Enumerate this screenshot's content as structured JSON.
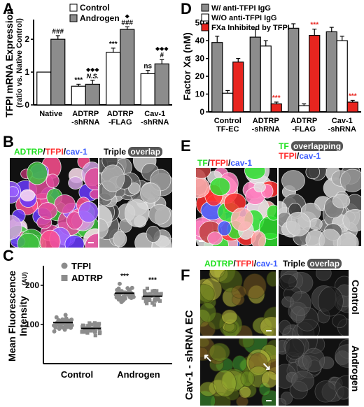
{
  "panels": {
    "A": "A",
    "B": "B",
    "C": "C",
    "D": "D",
    "E": "E",
    "F": "F"
  },
  "colors": {
    "control_fill": "#ffffff",
    "androgen_fill": "#8c8c8c",
    "w_igg_fill": "#8c8c8c",
    "wo_igg_fill": "#ffffff",
    "inhibited_fill": "#e8251f",
    "sig_red": "#e8251f",
    "green": "#22e022",
    "red": "#ff2a2a",
    "blue": "#3a5bff"
  },
  "chart_data": [
    {
      "type": "bar",
      "panel": "A",
      "ylabel": "TFPI mRNA Expression",
      "ylabel2": "(ratio vs. Native Control)",
      "categories": [
        "Native",
        "ADTRP\n-shRNA",
        "ADTRP\n-FLAG",
        "Cav-1\n-shRNA"
      ],
      "ylim": [
        0,
        2.6
      ],
      "yticks": [
        "0",
        "1",
        "2"
      ],
      "legend": [
        "Control",
        "Androgen"
      ],
      "series": [
        {
          "name": "Control",
          "values": [
            1.0,
            0.57,
            1.6,
            0.95
          ],
          "errors": [
            0.0,
            0.06,
            0.13,
            0.1
          ]
        },
        {
          "name": "Androgen",
          "values": [
            2.0,
            0.63,
            2.3,
            1.25
          ],
          "errors": [
            0.11,
            0.12,
            0.08,
            0.13
          ]
        }
      ],
      "annotations": [
        {
          "cat": 0,
          "bar": 1,
          "text": "###"
        },
        {
          "cat": 1,
          "bar": 0,
          "text": "***"
        },
        {
          "cat": 1,
          "bar": 1,
          "text": "N.S.",
          "sub": "◆◆◆"
        },
        {
          "cat": 2,
          "bar": 0,
          "text": "***"
        },
        {
          "cat": 2,
          "bar": 1,
          "text": "###",
          "sub": "◆"
        },
        {
          "cat": 3,
          "bar": 0,
          "text": "ns"
        },
        {
          "cat": 3,
          "bar": 1,
          "text": "#",
          "sub": "◆◆◆"
        }
      ]
    },
    {
      "type": "bar",
      "panel": "D",
      "ylabel": "Factor Xa (nM)",
      "categories": [
        "Control\nTF-EC",
        "ADTRP\n-shRNA",
        "ADTRP\n-FLAG",
        "Cav-1\n-shRNA"
      ],
      "ylim": [
        0,
        55
      ],
      "yticks": [
        "0",
        "10",
        "20",
        "30",
        "40",
        "50"
      ],
      "legend": [
        "W/ anti-TFPI IgG",
        "W/O anti-TFPI IgG",
        "FXa Inhibited by TFPI"
      ],
      "series": [
        {
          "name": "W/ anti-TFPI IgG",
          "values": [
            39,
            42,
            47,
            45
          ],
          "errors": [
            3.5,
            4.5,
            2.5,
            2.5
          ]
        },
        {
          "name": "W/O anti-TFPI IgG",
          "values": [
            10.5,
            37,
            3.5,
            40
          ],
          "errors": [
            1.5,
            3,
            1,
            2.5
          ]
        },
        {
          "name": "FXa Inhibited by TFPI",
          "values": [
            28,
            4.5,
            43,
            5.5
          ],
          "errors": [
            2,
            1,
            3.5,
            1
          ]
        }
      ],
      "annotations": [
        {
          "cat": 1,
          "bar": 2,
          "text": "***"
        },
        {
          "cat": 2,
          "bar": 2,
          "text": "***"
        },
        {
          "cat": 3,
          "bar": 2,
          "text": "***"
        }
      ]
    },
    {
      "type": "scatter",
      "panel": "C",
      "ylabel": "Mean Fluorescence",
      "ylabel2": "Intensity",
      "ylabel_unit": "(AU)",
      "categories": [
        "Control",
        "Androgen"
      ],
      "ylim": [
        0,
        250
      ],
      "yticks": [
        "100",
        "200"
      ],
      "legend": [
        "TFPI",
        "ADTRP"
      ],
      "groups": [
        {
          "category": "Control",
          "marker": "TFPI",
          "mean": 105,
          "spread": 28
        },
        {
          "category": "Control",
          "marker": "ADTRP",
          "mean": 90,
          "spread": 25
        },
        {
          "category": "Androgen",
          "marker": "TFPI",
          "mean": 180,
          "spread": 30
        },
        {
          "category": "Androgen",
          "marker": "ADTRP",
          "mean": 172,
          "spread": 28
        }
      ],
      "annotations": [
        {
          "group": 2,
          "text": "***"
        },
        {
          "group": 3,
          "text": "***"
        }
      ]
    }
  ],
  "panel_b": {
    "label_adtrp": "ADTRP",
    "label_sep1": "/",
    "label_tfpi": "TFPI",
    "label_sep2": "/",
    "label_cav": "cav-1",
    "label_triple": "Triple",
    "label_overlap": "overlap"
  },
  "panel_e": {
    "label_tf": "TF",
    "label_sep1": "/",
    "label_tfpi": "TFPI",
    "label_sep2": "/",
    "label_cav": "cav-1",
    "label_tf2": "TF",
    "label_overlapping": "overlapping",
    "label_tfpi2": "TFPI",
    "label_sep3": "/",
    "label_cav2": "cav-1"
  },
  "panel_f": {
    "label_adtrp": "ADTRP",
    "label_sep1": "/",
    "label_tfpi": "TFPI",
    "label_sep2": "/",
    "label_cav": "cav-1",
    "label_triple": "Triple",
    "label_overlap": "overlap",
    "side_label": "Cav-1 - shRNA EC",
    "row_control": "Control",
    "row_androgen": "Androgen"
  }
}
